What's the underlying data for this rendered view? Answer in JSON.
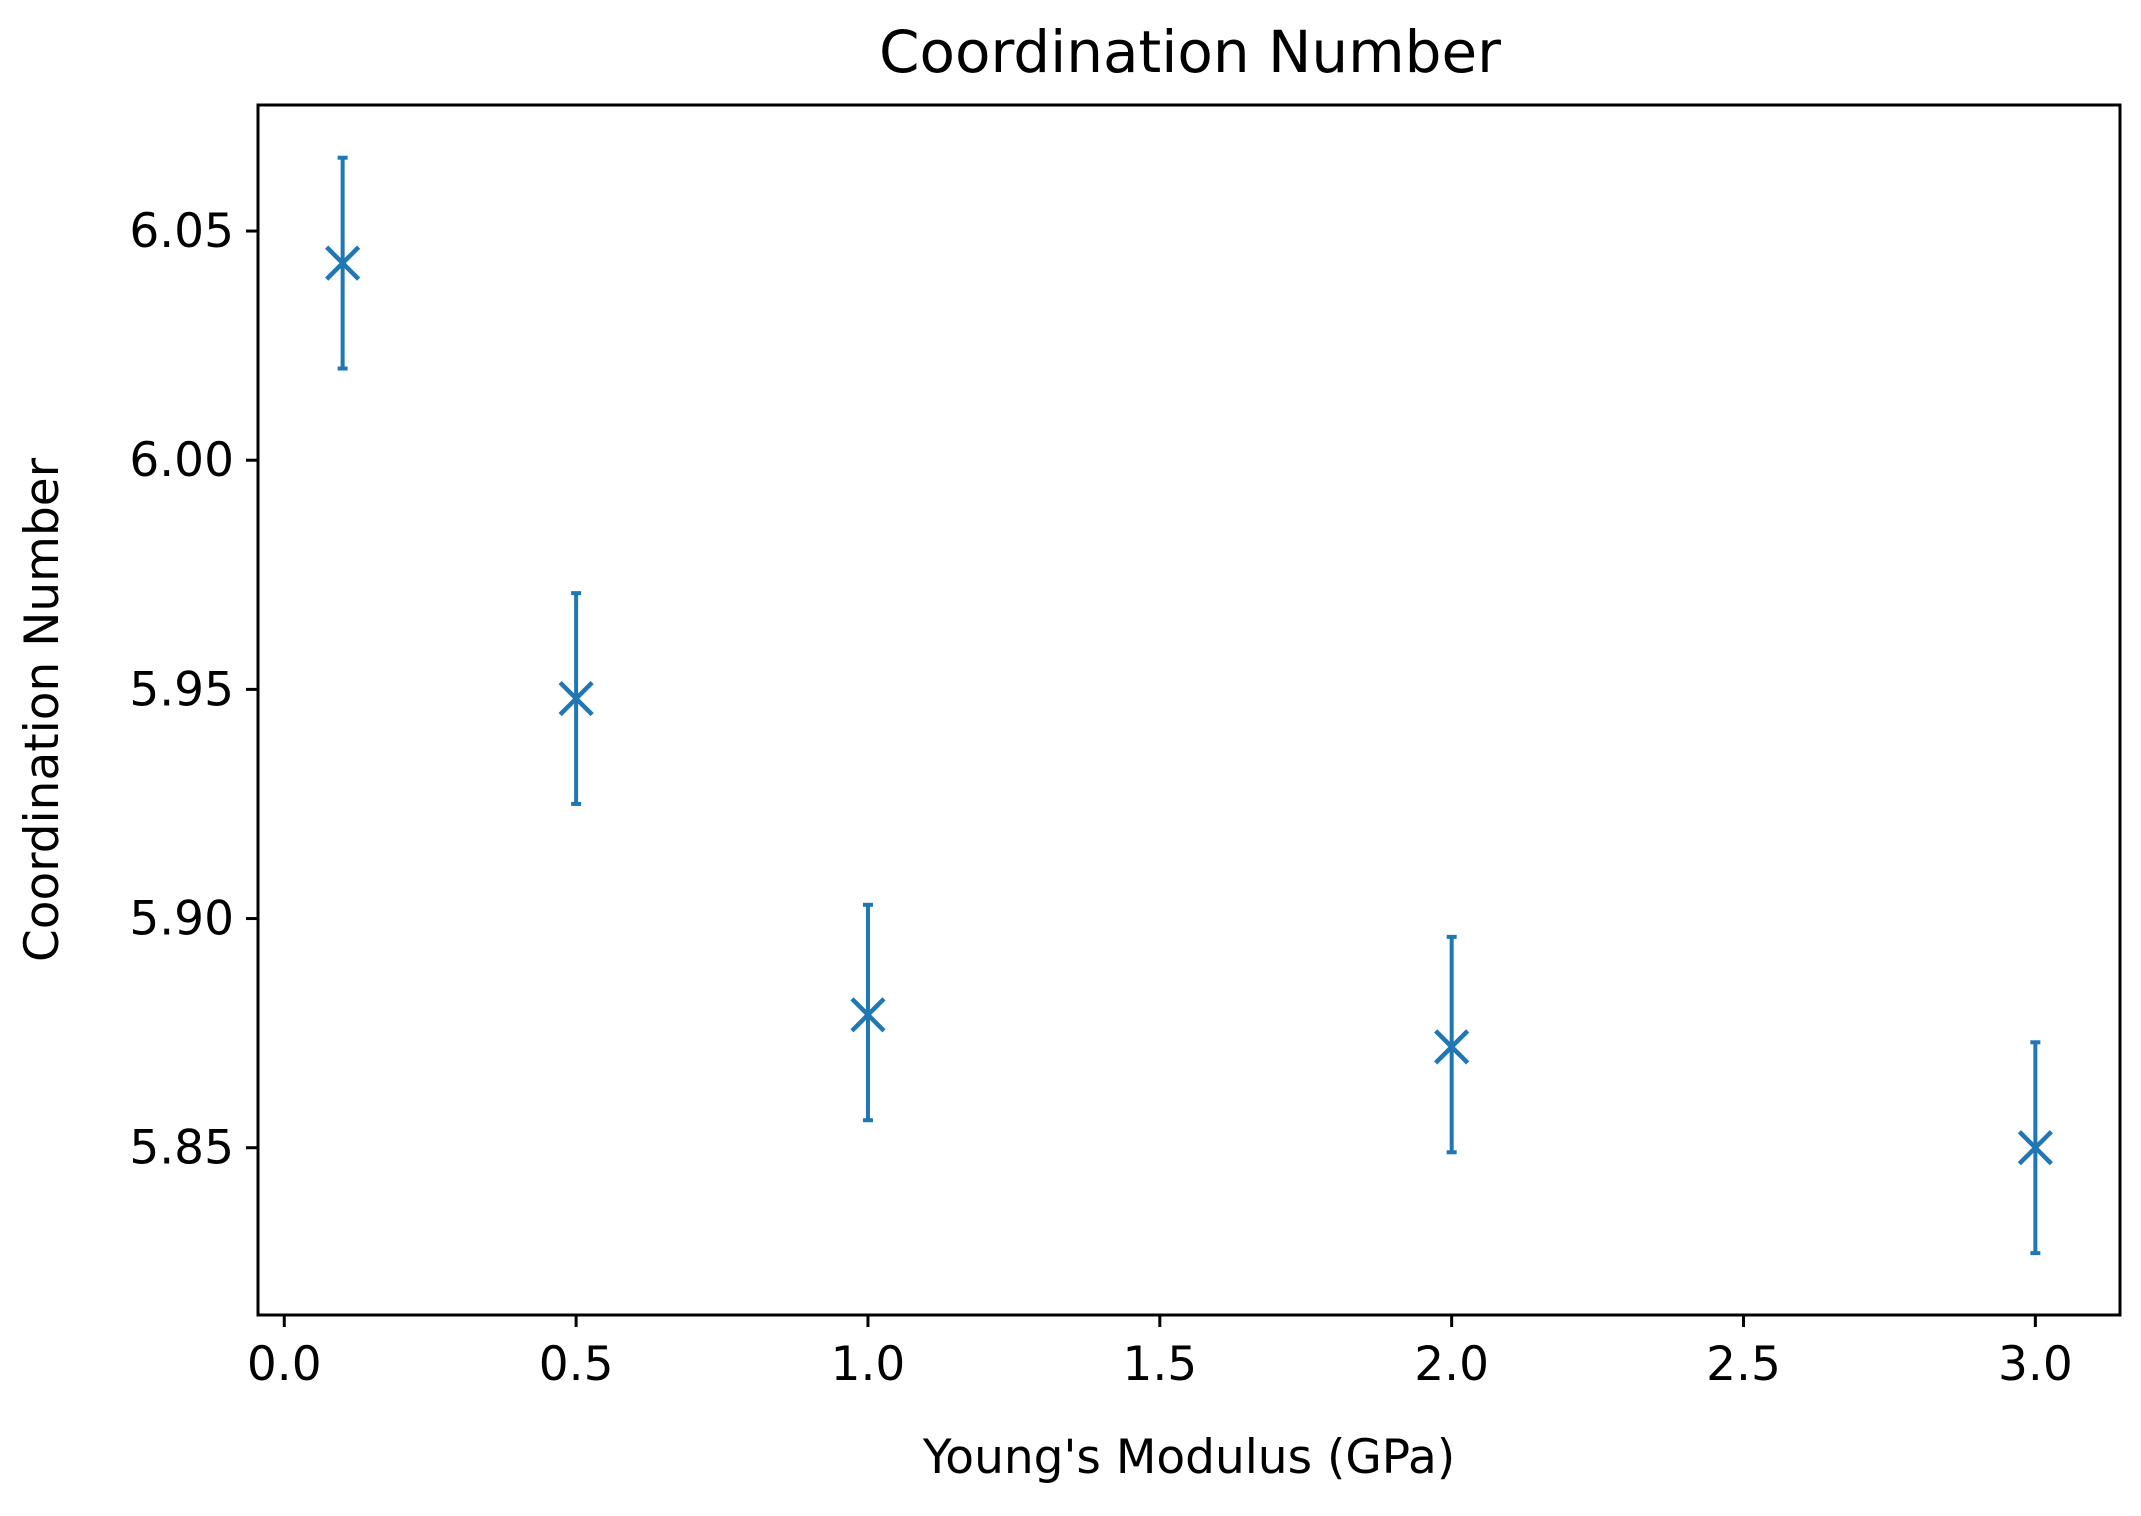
{
  "chart_data": {
    "type": "scatter",
    "title": "Coordination Number",
    "xlabel": "Young's Modulus (GPa)",
    "ylabel": "Coordination Number",
    "xlim": [
      -0.045,
      3.145
    ],
    "ylim": [
      5.8135,
      6.0775
    ],
    "xticks": [
      0.0,
      0.5,
      1.0,
      1.5,
      2.0,
      2.5,
      3.0
    ],
    "xtick_labels": [
      "0.0",
      "0.5",
      "1.0",
      "1.5",
      "2.0",
      "2.5",
      "3.0"
    ],
    "yticks": [
      5.85,
      5.9,
      5.95,
      6.0,
      6.05
    ],
    "ytick_labels": [
      "5.85",
      "5.90",
      "5.95",
      "6.00",
      "6.05"
    ],
    "grid": false,
    "marker": "x",
    "color": "#1f77b4",
    "series": [
      {
        "name": "Coordination Number",
        "x": [
          0.1,
          0.5,
          1.0,
          2.0,
          3.0
        ],
        "y": [
          6.043,
          5.948,
          5.879,
          5.872,
          5.85
        ],
        "err_low": [
          6.02,
          5.925,
          5.856,
          5.849,
          5.827
        ],
        "err_high": [
          6.066,
          5.971,
          5.903,
          5.896,
          5.873
        ]
      }
    ]
  }
}
